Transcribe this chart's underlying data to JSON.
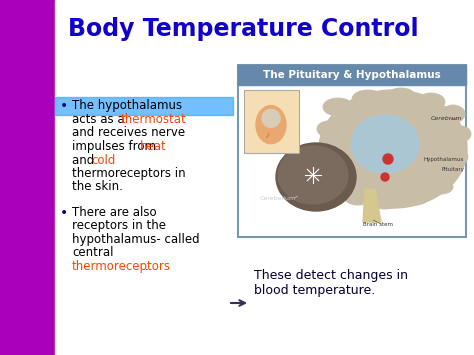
{
  "title": "Body Temperature Control",
  "title_color": "#1100CC",
  "title_fontsize": 17,
  "bg_color": "#FFFFFF",
  "left_bar_color": "#AA00BB",
  "slide_bg": "#FFFFFF",
  "bullet1_highlight_color": "#44AAFF",
  "bullet_dot_color": "#000080",
  "font": "Comic Sans MS",
  "body_fontsize": 8.5,
  "bullet1_lines": [
    [
      [
        "The hypothalamus",
        "#000000"
      ]
    ],
    [
      [
        "acts as a ",
        "#000000"
      ],
      [
        "thermostat",
        "#FF4400"
      ]
    ],
    [
      [
        "and receives nerve",
        "#000000"
      ]
    ],
    [
      [
        "impulses from ",
        "#000000"
      ],
      [
        "heat",
        "#FF4400"
      ]
    ],
    [
      [
        "and ",
        "#000000"
      ],
      [
        "cold",
        "#FF4400"
      ]
    ],
    [
      [
        "thermoreceptors in",
        "#000000"
      ]
    ],
    [
      [
        "the skin.",
        "#000000"
      ]
    ]
  ],
  "bullet2_lines": [
    [
      [
        "There are also",
        "#000000"
      ]
    ],
    [
      [
        "receptors in the",
        "#000000"
      ]
    ],
    [
      [
        "hypothalamus- called",
        "#000000"
      ]
    ],
    [
      [
        "central",
        "#000000"
      ]
    ],
    [
      [
        "thermoreceptors",
        "#FF4400"
      ],
      [
        ".",
        "#000000"
      ]
    ]
  ],
  "diagram_title": "The Pituitary & Hypothalamus",
  "diagram_title_bg": "#6688AA",
  "diagram_title_color": "#FFFFFF",
  "diagram_border_color": "#7799AA",
  "bottom_arrow_color": "#333355",
  "bottom_text": "These detect changes in\nblood temperature.",
  "bottom_text_color": "#000033"
}
